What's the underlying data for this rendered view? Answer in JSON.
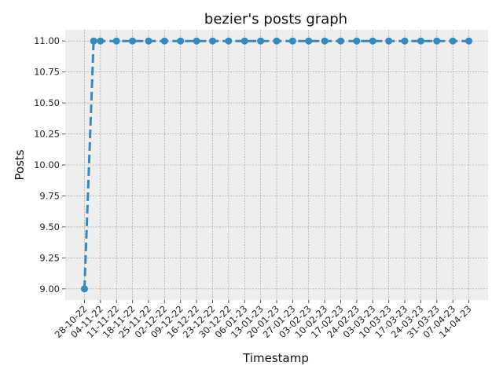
{
  "chart_data": {
    "type": "line",
    "title": "bezier's posts graph",
    "xlabel": "Timestamp",
    "ylabel": "Posts",
    "ylim": [
      8.91,
      11.09
    ],
    "yticks": [
      9.0,
      9.25,
      9.5,
      9.75,
      10.0,
      10.25,
      10.5,
      10.75,
      11.0
    ],
    "grid": true,
    "line_color": "#348abd",
    "plot_background": "#eeeeee",
    "grid_color": "#999999",
    "categories": [
      "28-10-22",
      "04-11-22",
      "11-11-22",
      "18-11-22",
      "25-11-22",
      "02-12-22",
      "09-12-22",
      "16-12-22",
      "23-12-22",
      "30-12-22",
      "06-01-23",
      "13-01-23",
      "20-01-23",
      "27-01-23",
      "03-02-23",
      "10-02-23",
      "17-02-23",
      "24-02-23",
      "03-03-23",
      "10-03-23",
      "17-03-23",
      "24-03-23",
      "31-03-23",
      "07-04-23",
      "14-04-23"
    ],
    "series": [
      {
        "x": [
          "28-10-22",
          "01-11-22",
          "04-11-22",
          "11-11-22",
          "18-11-22",
          "25-11-22",
          "02-12-22",
          "09-12-22",
          "16-12-22",
          "23-12-22",
          "30-12-22",
          "06-01-23",
          "13-01-23",
          "20-01-23",
          "27-01-23",
          "03-02-23",
          "10-02-23",
          "17-02-23",
          "24-02-23",
          "03-03-23",
          "10-03-23",
          "17-03-23",
          "24-03-23",
          "31-03-23",
          "07-04-23",
          "14-04-23"
        ],
        "values": [
          9,
          11,
          11,
          11,
          11,
          11,
          11,
          11,
          11,
          11,
          11,
          11,
          11,
          11,
          11,
          11,
          11,
          11,
          11,
          11,
          11,
          11,
          11,
          11,
          11,
          11
        ]
      }
    ]
  }
}
